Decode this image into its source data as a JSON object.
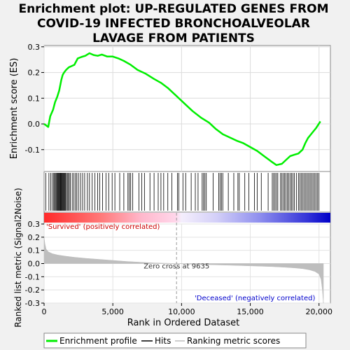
{
  "title_lines": [
    "Enrichment plot: UP-REGULATED GENES FROM",
    "COVID-19 INFECTED BRONCHOALVEOLAR",
    "LAVAGE FROM PATIENTS"
  ],
  "chart_data": {
    "type": "line",
    "es_panel": {
      "ylabel": "Enrichment score (ES)",
      "ylim": [
        -0.185,
        0.305
      ],
      "yticks": [
        -0.1,
        0.0,
        0.1,
        0.2,
        0.3
      ],
      "ytick_labels": [
        "-0.1",
        "0.0",
        "0.1",
        "0.2",
        "0.3"
      ],
      "grid": true,
      "series_color": "#00ee00",
      "x": [
        0,
        300,
        450,
        650,
        800,
        950,
        1100,
        1250,
        1350,
        1450,
        1600,
        1800,
        2000,
        2200,
        2450,
        2700,
        3000,
        3300,
        3600,
        3900,
        4200,
        4600,
        5000,
        5400,
        5800,
        6300,
        6800,
        7400,
        8000,
        8500,
        9000,
        9600,
        10200,
        10800,
        11400,
        12000,
        12500,
        13000,
        13600,
        14000,
        14500,
        15000,
        15500,
        16000,
        16500,
        16900,
        17300,
        17600,
        17900,
        18200,
        18500,
        18800,
        19000,
        19200,
        19500,
        19800,
        20100
      ],
      "y": [
        0.0,
        -0.012,
        0.03,
        0.055,
        0.085,
        0.105,
        0.13,
        0.17,
        0.19,
        0.2,
        0.21,
        0.22,
        0.225,
        0.23,
        0.255,
        0.26,
        0.265,
        0.275,
        0.268,
        0.265,
        0.27,
        0.262,
        0.262,
        0.255,
        0.245,
        0.23,
        0.21,
        0.195,
        0.175,
        0.16,
        0.14,
        0.11,
        0.08,
        0.05,
        0.025,
        0.005,
        -0.02,
        -0.04,
        -0.055,
        -0.065,
        -0.075,
        -0.09,
        -0.105,
        -0.125,
        -0.145,
        -0.16,
        -0.155,
        -0.14,
        -0.125,
        -0.12,
        -0.115,
        -0.1,
        -0.075,
        -0.055,
        -0.035,
        -0.015,
        0.01
      ]
    },
    "hits": {
      "x": [
        120,
        350,
        480,
        600,
        700,
        760,
        820,
        880,
        940,
        990,
        1040,
        1090,
        1130,
        1180,
        1220,
        1270,
        1310,
        1360,
        1400,
        1450,
        1500,
        1560,
        1620,
        1690,
        1760,
        1840,
        1920,
        2050,
        2160,
        2280,
        2380,
        2500,
        2650,
        2800,
        2950,
        3150,
        3300,
        3500,
        3700,
        3900,
        4050,
        4250,
        4500,
        4700,
        4950,
        5150,
        5500,
        5800,
        6100,
        6200,
        6300,
        6450,
        6900,
        7100,
        7300,
        7700,
        8000,
        8300,
        8500,
        8700,
        9000,
        9300,
        9700,
        9800,
        10100,
        10300,
        10700,
        11000,
        11200,
        11500,
        11600,
        11700,
        11800,
        12300,
        12700,
        12800,
        12900,
        13000,
        13400,
        13800,
        14100,
        14200,
        14600,
        14900,
        15300,
        15500,
        15800,
        16300,
        16600,
        16700,
        16800,
        16900,
        17000,
        17200,
        17300,
        17400,
        17500,
        17600,
        17700,
        17800,
        17900,
        18000,
        18100,
        18200,
        18350,
        18500,
        18600,
        18700,
        18800,
        18900,
        19000,
        19100,
        19200,
        19300,
        19400,
        19500,
        19600,
        19700,
        19800,
        19900,
        20000
      ]
    },
    "ranking_panel": {
      "ylabel": "Ranked list metric (Signal2Noise)",
      "ylim": [
        -0.3,
        0.3
      ],
      "yticks": [
        -0.3,
        -0.2,
        -0.1,
        0.0,
        0.1,
        0.2,
        0.3
      ],
      "ytick_labels": [
        "-0.3",
        "-0.2",
        "-0.1",
        "0.0",
        "0.1",
        "0.2",
        "0.3"
      ],
      "fill_color": "#bebebe",
      "x": [
        0,
        60,
        150,
        300,
        600,
        1000,
        1500,
        2200,
        3000,
        4000,
        5000,
        6000,
        7000,
        8000,
        9000,
        9635,
        10500,
        11500,
        12500,
        13500,
        14500,
        15500,
        16500,
        17500,
        18200,
        18800,
        19300,
        19700,
        20000,
        20150,
        20250,
        20320
      ],
      "y": [
        0.2,
        0.15,
        0.11,
        0.09,
        0.075,
        0.065,
        0.057,
        0.048,
        0.04,
        0.032,
        0.024,
        0.016,
        0.01,
        0.005,
        0.002,
        0.0,
        -0.004,
        -0.007,
        -0.01,
        -0.013,
        -0.016,
        -0.019,
        -0.023,
        -0.028,
        -0.033,
        -0.039,
        -0.048,
        -0.06,
        -0.08,
        -0.12,
        -0.2,
        -0.3
      ]
    },
    "xaxis": {
      "xlabel": "Rank in Ordered Dataset",
      "xlim": [
        0,
        20828
      ],
      "xticks": [
        0,
        5000,
        10000,
        15000,
        20000
      ],
      "xtick_labels": [
        "0",
        "5,000",
        "10,000",
        "15,000",
        "20,000"
      ]
    },
    "zero_cross": {
      "x": 9635,
      "label": "Zero cross at 9635"
    },
    "annotations": {
      "positive": "'Survived' (positively correlated)",
      "negative": "'Deceased' (negatively correlated)"
    },
    "legend": [
      {
        "label": "Enrichment profile",
        "color": "#00ee00"
      },
      {
        "label": "Hits",
        "color": "#000000"
      },
      {
        "label": "Ranking metric scores",
        "color": "#bebebe"
      }
    ],
    "legend_position": "bottom"
  }
}
